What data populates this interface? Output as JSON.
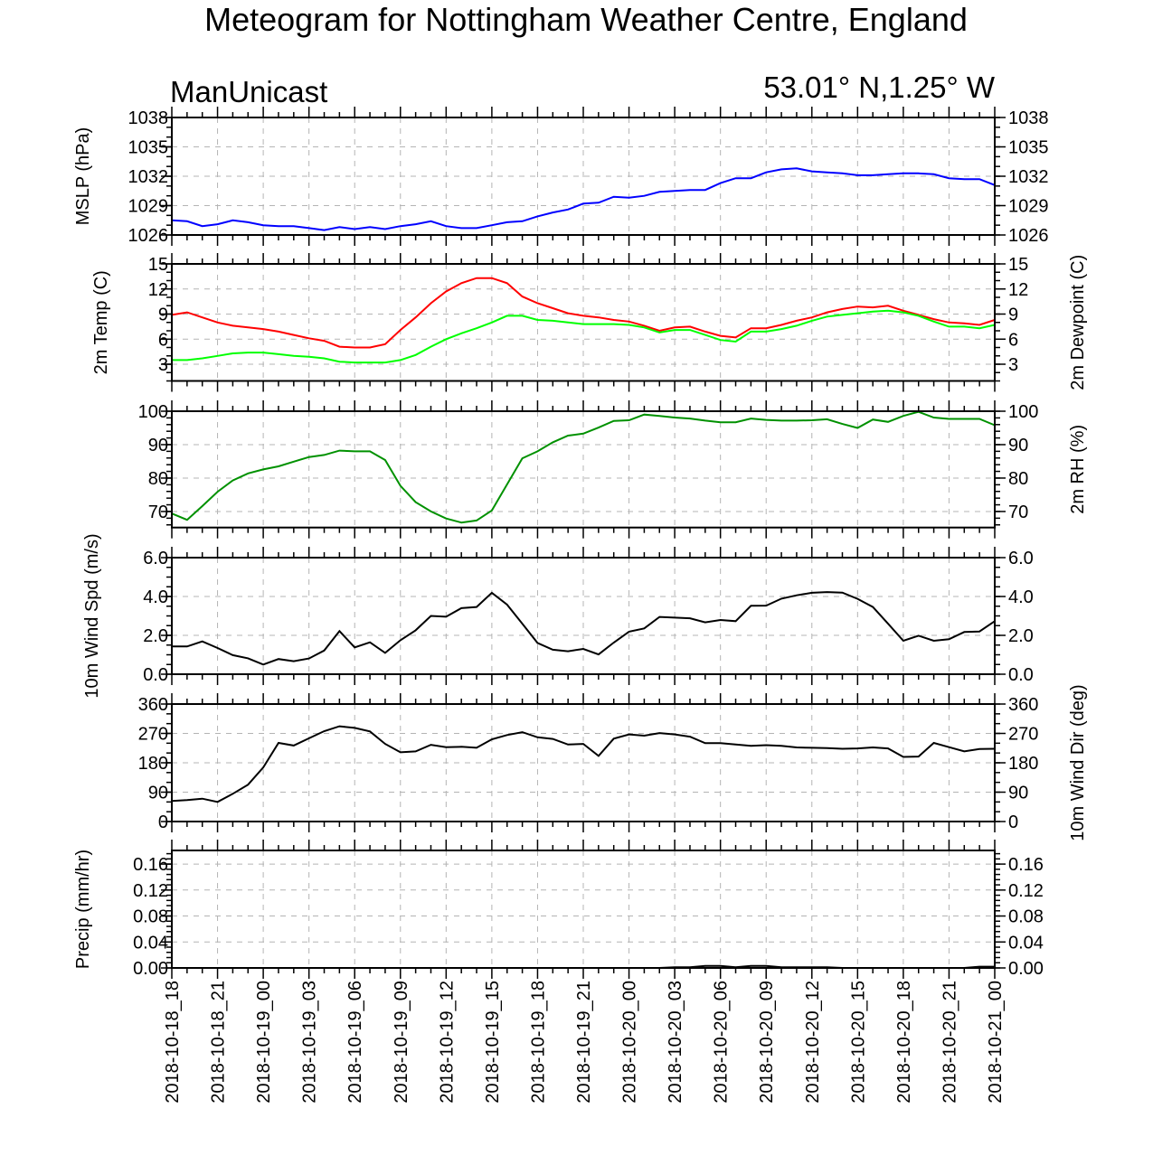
{
  "chart_data": {
    "type": "line",
    "title": "Meteogram for Nottingham Weather Centre, England",
    "subtitle_left": "ManUnicast",
    "subtitle_right": "53.01° N,1.25° W",
    "x_axis": {
      "unit": "hours since 2018-10-18_18",
      "range": [
        0,
        54
      ],
      "step_hours": 1,
      "tick_step_hours": 3,
      "tick_labels": [
        "2018-10-18_18",
        "2018-10-18_21",
        "2018-10-19_00",
        "2018-10-19_03",
        "2018-10-19_06",
        "2018-10-19_09",
        "2018-10-19_12",
        "2018-10-19_15",
        "2018-10-19_18",
        "2018-10-19_21",
        "2018-10-20_00",
        "2018-10-20_03",
        "2018-10-20_06",
        "2018-10-20_09",
        "2018-10-20_12",
        "2018-10-20_15",
        "2018-10-20_18",
        "2018-10-20_21",
        "2018-10-21_00"
      ]
    },
    "grid": true,
    "panels": [
      {
        "ylabel_left": "MSLP (hPa)",
        "ylabel_right": "",
        "ylim": [
          1026,
          1038
        ],
        "yticks": [
          1026,
          1029,
          1032,
          1035,
          1038
        ],
        "tick_labels": [
          "1026",
          "1029",
          "1032",
          "1035",
          "1038"
        ],
        "minor_step": 1,
        "series": [
          {
            "name": "MSLP",
            "color": "#0000ff",
            "values": [
              1027.5,
              1027.4,
              1026.9,
              1027.1,
              1027.5,
              1027.3,
              1027.0,
              1026.9,
              1026.9,
              1026.7,
              1026.5,
              1026.8,
              1026.6,
              1026.8,
              1026.6,
              1026.9,
              1027.1,
              1027.4,
              1026.9,
              1026.7,
              1026.7,
              1027.0,
              1027.3,
              1027.4,
              1027.9,
              1028.3,
              1028.6,
              1029.2,
              1029.3,
              1029.9,
              1029.8,
              1030.0,
              1030.4,
              1030.5,
              1030.6,
              1030.6,
              1031.3,
              1031.8,
              1031.8,
              1032.4,
              1032.7,
              1032.8,
              1032.5,
              1032.4,
              1032.3,
              1032.1,
              1032.1,
              1032.2,
              1032.3,
              1032.3,
              1032.2,
              1031.8,
              1031.7,
              1031.7,
              1031.1
            ]
          }
        ]
      },
      {
        "ylabel_left": "2m Temp (C)",
        "ylabel_right": "2m Dewpoint (C)",
        "ylim": [
          1,
          15
        ],
        "yticks": [
          3,
          6,
          9,
          12,
          15
        ],
        "tick_labels": [
          "3",
          "6",
          "9",
          "12",
          "15"
        ],
        "minor_step": 1,
        "series": [
          {
            "name": "2m Temp",
            "color": "#ff0000",
            "values": [
              8.9,
              9.2,
              8.6,
              8.0,
              7.6,
              7.4,
              7.2,
              6.9,
              6.5,
              6.1,
              5.8,
              5.1,
              5.0,
              5.0,
              5.4,
              7.1,
              8.6,
              10.3,
              11.7,
              12.7,
              13.3,
              13.3,
              12.7,
              11.1,
              10.3,
              9.7,
              9.1,
              8.8,
              8.6,
              8.3,
              8.1,
              7.6,
              7.0,
              7.4,
              7.5,
              6.9,
              6.4,
              6.2,
              7.3,
              7.3,
              7.7,
              8.2,
              8.6,
              9.2,
              9.6,
              9.9,
              9.8,
              10.0,
              9.4,
              8.9,
              8.4,
              8.0,
              7.9,
              7.7,
              8.3
            ]
          },
          {
            "name": "2m Dewpoint",
            "color": "#00ff00",
            "values": [
              3.5,
              3.5,
              3.7,
              4.0,
              4.3,
              4.4,
              4.4,
              4.2,
              4.0,
              3.9,
              3.7,
              3.3,
              3.2,
              3.2,
              3.2,
              3.5,
              4.1,
              5.1,
              6.0,
              6.7,
              7.3,
              8.0,
              8.8,
              8.8,
              8.3,
              8.2,
              8.0,
              7.8,
              7.8,
              7.8,
              7.7,
              7.4,
              6.8,
              7.1,
              7.1,
              6.5,
              5.9,
              5.7,
              6.9,
              6.9,
              7.2,
              7.6,
              8.2,
              8.7,
              8.9,
              9.1,
              9.3,
              9.4,
              9.2,
              8.8,
              8.1,
              7.5,
              7.5,
              7.3,
              7.7
            ]
          }
        ]
      },
      {
        "ylabel_left": "",
        "ylabel_right": "2m RH (%)",
        "ylim": [
          65.2,
          100
        ],
        "yticks": [
          70,
          80,
          90,
          100
        ],
        "tick_labels": [
          "70",
          "80",
          "90",
          "100"
        ],
        "minor_step": 2,
        "series": [
          {
            "name": "2m RH",
            "color": "#009100",
            "values": [
              69.4,
              67.5,
              71.6,
              75.9,
              79.3,
              81.4,
              82.6,
              83.5,
              84.9,
              86.3,
              86.9,
              88.2,
              88.0,
              88.0,
              85.4,
              77.7,
              72.8,
              70.0,
              67.9,
              66.7,
              67.3,
              70.3,
              78.1,
              85.9,
              88.0,
              90.7,
              92.7,
              93.3,
              95.1,
              97.1,
              97.3,
              99.0,
              98.6,
              98.1,
              97.8,
              97.2,
              96.7,
              96.7,
              97.8,
              97.4,
              97.2,
              97.2,
              97.3,
              97.6,
              96.2,
              95.0,
              97.5,
              96.8,
              98.6,
              99.8,
              98.1,
              97.7,
              97.7,
              97.7,
              95.8
            ]
          }
        ]
      },
      {
        "ylabel_left": "10m Wind Spd (m/s)",
        "ylabel_right": "",
        "ylim": [
          0,
          6
        ],
        "yticks": [
          0,
          2,
          4,
          6
        ],
        "tick_labels": [
          "0.0",
          "2.0",
          "4.0",
          "6.0"
        ],
        "minor_step": 0.5,
        "series": [
          {
            "name": "10m Wind Speed",
            "color": "#000000",
            "values": [
              1.43,
              1.43,
              1.69,
              1.35,
              0.98,
              0.82,
              0.5,
              0.78,
              0.67,
              0.81,
              1.22,
              2.22,
              1.38,
              1.64,
              1.1,
              1.75,
              2.26,
              3.0,
              2.96,
              3.4,
              3.46,
              4.19,
              3.58,
              2.6,
              1.61,
              1.26,
              1.18,
              1.3,
              1.02,
              1.63,
              2.19,
              2.36,
              2.95,
              2.91,
              2.88,
              2.67,
              2.79,
              2.73,
              3.52,
              3.53,
              3.89,
              4.06,
              4.19,
              4.23,
              4.2,
              3.88,
              3.46,
              2.6,
              1.72,
              1.98,
              1.72,
              1.8,
              2.17,
              2.2,
              2.73
            ]
          }
        ]
      },
      {
        "ylabel_left": "",
        "ylabel_right": "10m Wind Dir (deg)",
        "ylim": [
          0,
          360
        ],
        "yticks": [
          0,
          90,
          180,
          270,
          360
        ],
        "tick_labels": [
          "0",
          "90",
          "180",
          "270",
          "360"
        ],
        "minor_step": 30,
        "series": [
          {
            "name": "10m Wind Direction",
            "color": "#000000",
            "values": [
              63,
              66,
              70,
              60,
              85,
              113,
              166,
              241,
              233,
              255,
              277,
              292,
              287,
              276,
              238,
              212,
              215,
              235,
              228,
              229,
              226,
              252,
              265,
              274,
              258,
              253,
              236,
              238,
              201,
              254,
              267,
              263,
              271,
              267,
              260,
              240,
              240,
              236,
              232,
              234,
              232,
              227,
              226,
              225,
              223,
              224,
              227,
              224,
              198,
              199,
              241,
              228,
              215,
              222,
              223
            ]
          }
        ]
      },
      {
        "ylabel_left": "Precip (mm/hr)",
        "ylabel_right": "",
        "ylim": [
          0,
          0.181
        ],
        "yticks": [
          0,
          0.04,
          0.08,
          0.12,
          0.16
        ],
        "tick_labels": [
          "0.00",
          "0.04",
          "0.08",
          "0.12",
          "0.16"
        ],
        "minor_step": 0.008,
        "series": [
          {
            "name": "Precip",
            "color": "#000000",
            "values": [
              0,
              0,
              0,
              0,
              0,
              0,
              0,
              0,
              0,
              0,
              0,
              0,
              0,
              0,
              0,
              0,
              0,
              0,
              0,
              0,
              0,
              0,
              0,
              0,
              0,
              0,
              0,
              0,
              0,
              0,
              0,
              0,
              0,
              0.001,
              0.001,
              0.003,
              0.003,
              0.001,
              0.003,
              0.003,
              0.001,
              0.001,
              0.001,
              0.001,
              0,
              0,
              0,
              0,
              0,
              0,
              0,
              0,
              0,
              0.002,
              0.002
            ]
          }
        ]
      }
    ]
  }
}
